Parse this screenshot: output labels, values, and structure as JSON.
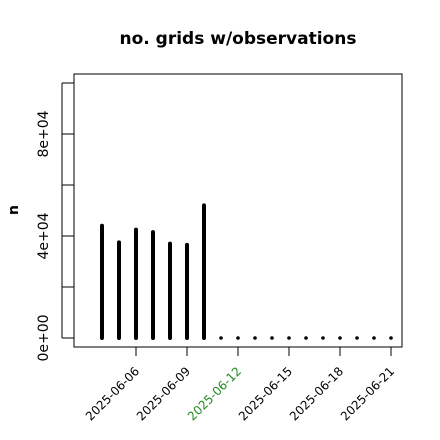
{
  "chart_data": {
    "type": "bar",
    "title": "no. grids w/observations",
    "xlabel": "",
    "ylabel": "n",
    "x": [
      "2025-06-04",
      "2025-06-05",
      "2025-06-06",
      "2025-06-07",
      "2025-06-08",
      "2025-06-09",
      "2025-06-10",
      "2025-06-11",
      "2025-06-12",
      "2025-06-13",
      "2025-06-14",
      "2025-06-15",
      "2025-06-16",
      "2025-06-17",
      "2025-06-18",
      "2025-06-19",
      "2025-06-20",
      "2025-06-21"
    ],
    "values": [
      44000,
      37500,
      42500,
      41500,
      37000,
      36500,
      52000,
      0,
      0,
      0,
      0,
      0,
      0,
      0,
      0,
      0,
      0,
      0
    ],
    "xticks": [
      "2025-06-06",
      "2025-06-09",
      "2025-06-12",
      "2025-06-15",
      "2025-06-18",
      "2025-06-21"
    ],
    "xtick_colors": [
      "#000000",
      "#000000",
      "#228B22",
      "#000000",
      "#000000",
      "#000000"
    ],
    "yticks": [
      0,
      40000,
      80000
    ],
    "ytick_labels": [
      "0e+00",
      "4e+04",
      "8e+04"
    ],
    "ylim": [
      0,
      100000
    ],
    "grid": false,
    "legend": "none"
  }
}
